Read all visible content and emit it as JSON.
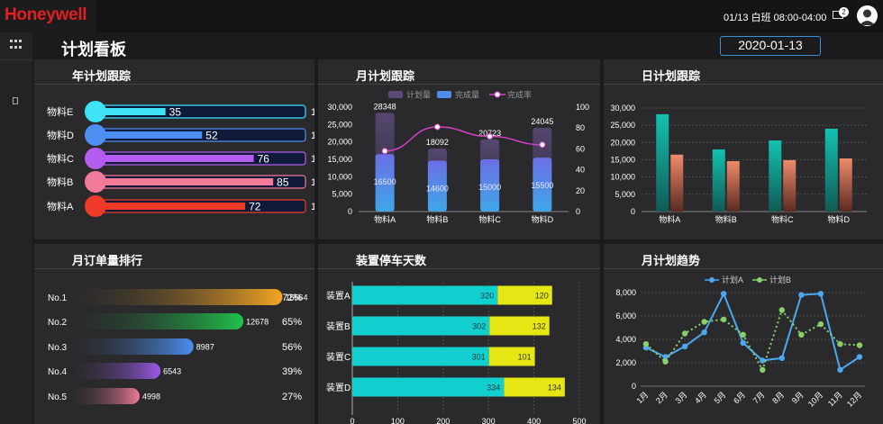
{
  "header": {
    "logo": "Honeywell",
    "datetime": "01/13 白班 08:00-04:00",
    "mail_badge": "2",
    "page_title": "计划看板",
    "date": "2020-01-13"
  },
  "panels": {
    "annual": "年计划跟踪",
    "monthly": "月计划跟踪",
    "daily": "日计划跟踪",
    "ranking": "月订单量排行",
    "downtime": "装置停车天数",
    "trend": "月计划趋势"
  },
  "colors": {
    "accent": "#3a8fd8",
    "brand": "#e02020"
  },
  "chart_data": [
    {
      "id": "annual",
      "type": "bar",
      "orientation": "horizontal",
      "categories": [
        "物料E",
        "物料D",
        "物料C",
        "物料B",
        "物料A"
      ],
      "values": [
        35,
        52,
        76,
        85,
        72
      ],
      "max": 100,
      "right_labels": [
        "1",
        "1",
        "1",
        "1",
        "1"
      ],
      "colors": [
        "#3ee3f5",
        "#4d8ff2",
        "#b45cf0",
        "#f37b9a",
        "#f03a28"
      ]
    },
    {
      "id": "monthly",
      "type": "bar",
      "categories": [
        "物料A",
        "物料B",
        "物料C",
        "物料D"
      ],
      "legend": [
        "计划量",
        "完成量",
        "完成率"
      ],
      "series": [
        {
          "name": "计划量",
          "values": [
            28348,
            18092,
            20723,
            24045
          ]
        },
        {
          "name": "完成量",
          "values": [
            16500,
            14600,
            15000,
            15500
          ]
        },
        {
          "name": "完成率",
          "values": [
            58,
            81,
            72,
            64
          ]
        }
      ],
      "ylim": [
        0,
        30000
      ],
      "y_ticks": [
        "0",
        "5,000",
        "10,000",
        "15,000",
        "20,000",
        "25,000",
        "30,000"
      ],
      "y2lim": [
        0,
        100
      ],
      "y2_ticks": [
        "0",
        "20",
        "40",
        "60",
        "80",
        "100"
      ]
    },
    {
      "id": "daily",
      "type": "bar",
      "categories": [
        "物料A",
        "物料B",
        "物料C",
        "物料D"
      ],
      "series": [
        {
          "name": "s1",
          "values": [
            28200,
            18000,
            20600,
            24000
          ]
        },
        {
          "name": "s2",
          "values": [
            16500,
            14600,
            14900,
            15400
          ]
        }
      ],
      "ylim": [
        0,
        30000
      ],
      "y_ticks": [
        "0",
        "5,000",
        "10,000",
        "15,000",
        "20,000",
        "25,000",
        "30,000"
      ]
    },
    {
      "id": "ranking",
      "type": "bar",
      "orientation": "horizontal",
      "categories": [
        "No.1",
        "No.2",
        "No.3",
        "No.4",
        "No.5"
      ],
      "values": [
        15564,
        12678,
        8987,
        6543,
        4998
      ],
      "value_labels": [
        "15564",
        "12678",
        "8987",
        "6543",
        "4998"
      ],
      "percents": [
        "72%",
        "65%",
        "56%",
        "39%",
        "27%"
      ],
      "max": 18000,
      "colors": [
        "#f5a623",
        "#1fc24a",
        "#4a8ff0",
        "#9b59e6",
        "#f07a9a"
      ]
    },
    {
      "id": "downtime",
      "type": "bar",
      "orientation": "horizontal",
      "stacked": true,
      "categories": [
        "装置A",
        "装置B",
        "装置C",
        "装置D"
      ],
      "series": [
        {
          "name": "s1",
          "values": [
            320,
            302,
            301,
            334
          ]
        },
        {
          "name": "s2",
          "values": [
            120,
            132,
            101,
            134
          ]
        }
      ],
      "xlim": [
        0,
        500
      ],
      "x_ticks": [
        "0",
        "100",
        "200",
        "300",
        "400",
        "500"
      ]
    },
    {
      "id": "trend",
      "type": "line",
      "categories": [
        "1月",
        "2月",
        "3月",
        "4月",
        "5月",
        "6月",
        "7月",
        "8月",
        "9月",
        "10月",
        "11月",
        "12月"
      ],
      "legend": [
        "计划A",
        "计划B"
      ],
      "series": [
        {
          "name": "计划A",
          "values": [
            3300,
            2500,
            3400,
            4600,
            7900,
            3700,
            2200,
            2400,
            7800,
            7900,
            1400,
            2500
          ]
        },
        {
          "name": "计划B",
          "values": [
            3600,
            2100,
            4500,
            5500,
            5700,
            4400,
            1400,
            6500,
            4400,
            5300,
            3600,
            3500
          ]
        }
      ],
      "ylim": [
        0,
        8000
      ],
      "y_ticks": [
        "0",
        "2,000",
        "4,000",
        "6,000",
        "8,000"
      ]
    }
  ]
}
